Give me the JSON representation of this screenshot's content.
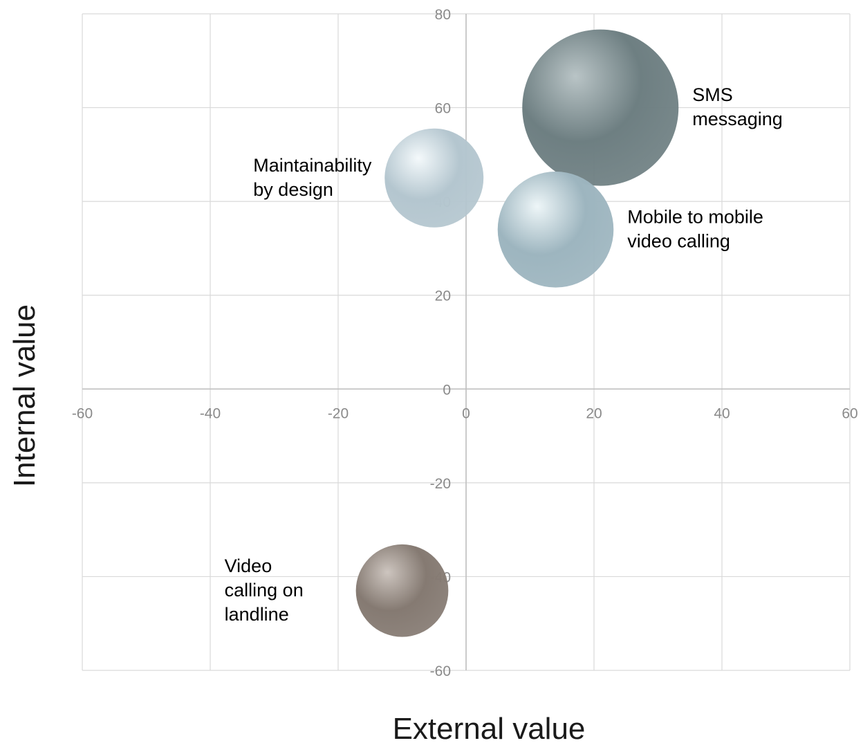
{
  "chart_data": {
    "type": "bubble",
    "title": "",
    "xlabel": "External value",
    "ylabel": "Internal value",
    "xlim": [
      -60,
      60
    ],
    "ylim": [
      -60,
      80
    ],
    "xticks": [
      -60,
      -40,
      -20,
      0,
      20,
      40,
      60
    ],
    "yticks": [
      -60,
      -40,
      -20,
      0,
      20,
      40,
      60,
      80
    ],
    "grid": true,
    "legend": "none",
    "points": [
      {
        "label_lines": [
          "SMS",
          "messaging"
        ],
        "x": 21,
        "y": 60,
        "size": 100,
        "color": "#6e7f82",
        "highlight": "#b9c4c6",
        "label_side": "right"
      },
      {
        "label_lines": [
          "Maintainability",
          "by design"
        ],
        "x": -5,
        "y": 45,
        "size": 40,
        "color": "#b4c6cf",
        "highlight": "#f4f9fb",
        "label_side": "left"
      },
      {
        "label_lines": [
          "Mobile to mobile",
          "video calling"
        ],
        "x": 14,
        "y": 34,
        "size": 55,
        "color": "#9db5bf",
        "highlight": "#eef6f8",
        "label_side": "right"
      },
      {
        "label_lines": [
          "Video",
          "calling on",
          "landline"
        ],
        "x": -10,
        "y": -43,
        "size": 35,
        "color": "#857a72",
        "highlight": "#cdc5bf",
        "label_side": "left"
      }
    ]
  }
}
